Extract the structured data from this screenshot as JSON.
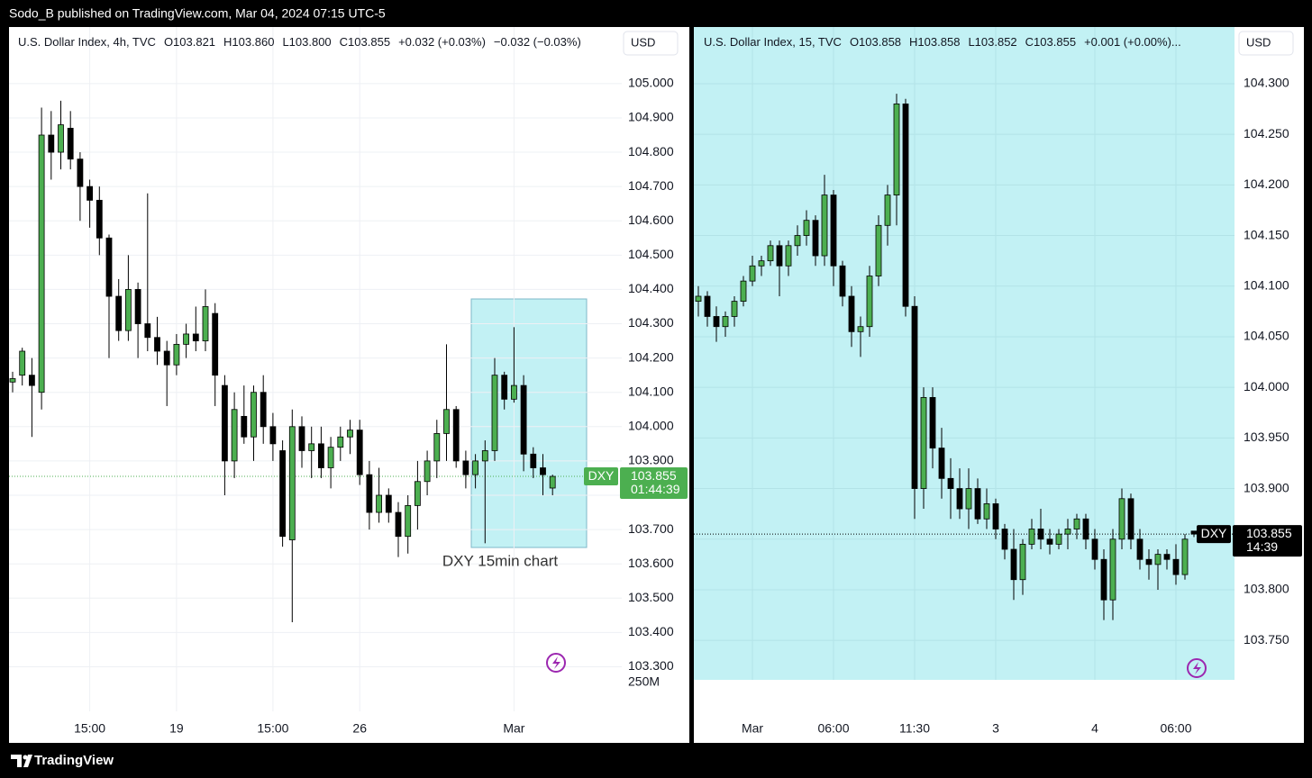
{
  "header": {
    "publish_line": "Sodo_B published on TradingView.com, Mar 04, 2024 07:15 UTC-5"
  },
  "footer": {
    "brand": "TradingView"
  },
  "chart_data": [
    {
      "type": "candlestick",
      "title": "U.S. Dollar Index, 4h, TVC",
      "legend": [
        "O103.821",
        "H103.860",
        "L103.800",
        "C103.855",
        "+0.032 (+0.03%)",
        "−0.032 (−0.03%)"
      ],
      "currency": "USD",
      "symbol": "DXY",
      "countdown": "01:44:39",
      "volume_label": "250M",
      "annotation": "DXY 15min chart",
      "last_price": 103.855,
      "last_price_color": "#4caf50",
      "up_color": "#4caf50",
      "down_color": "#000000",
      "background": "#ffffff",
      "grid": true,
      "ylim": [
        103.17,
        105.165
      ],
      "yticks": [
        {
          "value": 103.3,
          "label": "103.300"
        },
        {
          "value": 103.4,
          "label": "103.400"
        },
        {
          "value": 103.5,
          "label": "103.500"
        },
        {
          "value": 103.6,
          "label": "103.600"
        },
        {
          "value": 103.7,
          "label": "103.700"
        },
        {
          "value": 103.8,
          "label": "103.800"
        },
        {
          "value": 103.9,
          "label": "103.900"
        },
        {
          "value": 104.0,
          "label": "104.000"
        },
        {
          "value": 104.1,
          "label": "104.100"
        },
        {
          "value": 104.2,
          "label": "104.200"
        },
        {
          "value": 104.3,
          "label": "104.300"
        },
        {
          "value": 104.4,
          "label": "104.400"
        },
        {
          "value": 104.5,
          "label": "104.500"
        },
        {
          "value": 104.6,
          "label": "104.600"
        },
        {
          "value": 104.7,
          "label": "104.700"
        },
        {
          "value": 104.8,
          "label": "104.800"
        },
        {
          "value": 104.9,
          "label": "104.900"
        },
        {
          "value": 105.0,
          "label": "105.000"
        }
      ],
      "categories": [
        null,
        null,
        null,
        null,
        null,
        null,
        null,
        null,
        "15:00",
        null,
        null,
        null,
        null,
        null,
        null,
        null,
        null,
        "19",
        null,
        null,
        null,
        null,
        null,
        null,
        null,
        null,
        null,
        "15:00",
        null,
        null,
        null,
        null,
        null,
        null,
        null,
        null,
        "26",
        null,
        null,
        null,
        null,
        null,
        null,
        null,
        null,
        null,
        null,
        null,
        null,
        null,
        null,
        null,
        "Mar",
        null,
        null,
        null,
        null
      ],
      "ohlc": [
        [
          104.13,
          104.16,
          104.1,
          104.14
        ],
        [
          104.15,
          104.23,
          104.12,
          104.22
        ],
        [
          104.15,
          104.2,
          103.97,
          104.12
        ],
        [
          104.1,
          104.93,
          104.05,
          104.85
        ],
        [
          104.85,
          104.92,
          104.72,
          104.8
        ],
        [
          104.8,
          104.95,
          104.75,
          104.88
        ],
        [
          104.87,
          104.92,
          104.75,
          104.78
        ],
        [
          104.78,
          104.8,
          104.6,
          104.7
        ],
        [
          104.7,
          104.72,
          104.58,
          104.66
        ],
        [
          104.66,
          104.7,
          104.5,
          104.55
        ],
        [
          104.55,
          104.56,
          104.2,
          104.38
        ],
        [
          104.38,
          104.43,
          104.25,
          104.28
        ],
        [
          104.28,
          104.5,
          104.25,
          104.4
        ],
        [
          104.4,
          104.42,
          104.2,
          104.3
        ],
        [
          104.3,
          104.68,
          104.22,
          104.26
        ],
        [
          104.26,
          104.32,
          104.18,
          104.22
        ],
        [
          104.22,
          104.25,
          104.06,
          104.18
        ],
        [
          104.18,
          104.27,
          104.15,
          104.24
        ],
        [
          104.24,
          104.3,
          104.2,
          104.27
        ],
        [
          104.27,
          104.35,
          104.22,
          104.25
        ],
        [
          104.25,
          104.4,
          104.22,
          104.35
        ],
        [
          104.33,
          104.36,
          104.06,
          104.15
        ],
        [
          104.12,
          104.15,
          103.8,
          103.9
        ],
        [
          103.9,
          104.1,
          103.85,
          104.05
        ],
        [
          104.03,
          104.12,
          103.95,
          103.97
        ],
        [
          103.97,
          104.12,
          103.9,
          104.1
        ],
        [
          104.1,
          104.15,
          103.95,
          104.0
        ],
        [
          104.0,
          104.04,
          103.9,
          103.95
        ],
        [
          103.93,
          103.96,
          103.65,
          103.68
        ],
        [
          103.67,
          104.05,
          103.43,
          104.0
        ],
        [
          104.0,
          104.03,
          103.88,
          103.93
        ],
        [
          103.93,
          104.0,
          103.85,
          103.95
        ],
        [
          103.95,
          104.0,
          103.85,
          103.88
        ],
        [
          103.88,
          103.97,
          103.82,
          103.94
        ],
        [
          103.94,
          104.0,
          103.9,
          103.97
        ],
        [
          103.97,
          104.02,
          103.92,
          103.99
        ],
        [
          103.99,
          104.02,
          103.83,
          103.86
        ],
        [
          103.86,
          103.9,
          103.7,
          103.75
        ],
        [
          103.75,
          103.88,
          103.72,
          103.8
        ],
        [
          103.8,
          103.82,
          103.72,
          103.75
        ],
        [
          103.75,
          103.78,
          103.62,
          103.68
        ],
        [
          103.68,
          103.8,
          103.63,
          103.77
        ],
        [
          103.77,
          103.9,
          103.7,
          103.84
        ],
        [
          103.84,
          103.93,
          103.8,
          103.9
        ],
        [
          103.9,
          104.02,
          103.85,
          103.98
        ],
        [
          103.98,
          104.24,
          103.9,
          104.05
        ],
        [
          104.05,
          104.06,
          103.88,
          103.9
        ],
        [
          103.9,
          103.93,
          103.82,
          103.86
        ],
        [
          103.86,
          103.92,
          103.82,
          103.9
        ],
        [
          103.9,
          103.96,
          103.66,
          103.93
        ],
        [
          103.93,
          104.2,
          103.9,
          104.15
        ],
        [
          104.15,
          104.16,
          104.05,
          104.08
        ],
        [
          104.08,
          104.29,
          104.07,
          104.12
        ],
        [
          104.12,
          104.15,
          103.87,
          103.92
        ],
        [
          103.92,
          103.94,
          103.85,
          103.88
        ],
        [
          103.88,
          103.92,
          103.8,
          103.86
        ],
        [
          103.821,
          103.86,
          103.8,
          103.855
        ]
      ]
    },
    {
      "type": "candlestick",
      "title": "U.S. Dollar Index, 15, TVC",
      "legend": [
        "O103.858",
        "H103.858",
        "L103.852",
        "C103.855",
        "+0.001 (+0.00%)..."
      ],
      "currency": "USD",
      "symbol": "DXY",
      "countdown": "14:39",
      "last_price": 103.855,
      "last_price_color": "#000000",
      "up_color": "#4caf50",
      "down_color": "#000000",
      "background": "#c2f1f4",
      "grid": true,
      "ylim": [
        103.711,
        104.356
      ],
      "yticks": [
        {
          "value": 103.75,
          "label": "103.750"
        },
        {
          "value": 103.8,
          "label": "103.800"
        },
        {
          "value": 103.85,
          "label": "103.850"
        },
        {
          "value": 103.9,
          "label": "103.900"
        },
        {
          "value": 103.95,
          "label": "103.950"
        },
        {
          "value": 104.0,
          "label": "104.000"
        },
        {
          "value": 104.05,
          "label": "104.050"
        },
        {
          "value": 104.1,
          "label": "104.100"
        },
        {
          "value": 104.15,
          "label": "104.150"
        },
        {
          "value": 104.2,
          "label": "104.200"
        },
        {
          "value": 104.25,
          "label": "104.250"
        },
        {
          "value": 104.3,
          "label": "104.300"
        }
      ],
      "categories": [
        null,
        null,
        null,
        null,
        null,
        null,
        "Mar",
        null,
        null,
        null,
        null,
        null,
        null,
        null,
        null,
        "06:00",
        null,
        null,
        null,
        null,
        null,
        null,
        null,
        null,
        "11:30",
        null,
        null,
        null,
        null,
        null,
        null,
        null,
        null,
        "3",
        null,
        null,
        null,
        null,
        null,
        null,
        null,
        null,
        null,
        null,
        "4",
        null,
        null,
        null,
        null,
        null,
        null,
        null,
        null,
        "06:00",
        null,
        null
      ],
      "ohlc": [
        [
          104.085,
          104.1,
          104.07,
          104.09
        ],
        [
          104.09,
          104.095,
          104.06,
          104.07
        ],
        [
          104.07,
          104.08,
          104.045,
          104.06
        ],
        [
          104.06,
          104.075,
          104.05,
          104.07
        ],
        [
          104.07,
          104.09,
          104.06,
          104.085
        ],
        [
          104.085,
          104.11,
          104.08,
          104.105
        ],
        [
          104.105,
          104.13,
          104.1,
          104.12
        ],
        [
          104.12,
          104.13,
          104.11,
          104.125
        ],
        [
          104.125,
          104.145,
          104.12,
          104.14
        ],
        [
          104.14,
          104.145,
          104.09,
          104.12
        ],
        [
          104.12,
          104.145,
          104.11,
          104.14
        ],
        [
          104.14,
          104.16,
          104.13,
          104.15
        ],
        [
          104.15,
          104.175,
          104.14,
          104.165
        ],
        [
          104.165,
          104.17,
          104.12,
          104.13
        ],
        [
          104.13,
          104.21,
          104.12,
          104.19
        ],
        [
          104.19,
          104.195,
          104.1,
          104.12
        ],
        [
          104.12,
          104.125,
          104.08,
          104.09
        ],
        [
          104.09,
          104.1,
          104.04,
          104.055
        ],
        [
          104.055,
          104.07,
          104.03,
          104.06
        ],
        [
          104.06,
          104.12,
          104.05,
          104.11
        ],
        [
          104.11,
          104.17,
          104.1,
          104.16
        ],
        [
          104.16,
          104.2,
          104.14,
          104.19
        ],
        [
          104.19,
          104.29,
          104.16,
          104.28
        ],
        [
          104.28,
          104.285,
          104.07,
          104.08
        ],
        [
          104.08,
          104.09,
          103.87,
          103.9
        ],
        [
          103.9,
          104.0,
          103.88,
          103.99
        ],
        [
          103.99,
          104.0,
          103.92,
          103.94
        ],
        [
          103.94,
          103.96,
          103.89,
          103.91
        ],
        [
          103.91,
          103.93,
          103.87,
          103.9
        ],
        [
          103.9,
          103.92,
          103.87,
          103.88
        ],
        [
          103.88,
          103.92,
          103.86,
          103.9
        ],
        [
          103.9,
          103.91,
          103.865,
          103.87
        ],
        [
          103.87,
          103.9,
          103.86,
          103.885
        ],
        [
          103.885,
          103.89,
          103.85,
          103.86
        ],
        [
          103.86,
          103.865,
          103.83,
          103.84
        ],
        [
          103.84,
          103.86,
          103.79,
          103.81
        ],
        [
          103.81,
          103.85,
          103.795,
          103.845
        ],
        [
          103.845,
          103.87,
          103.84,
          103.86
        ],
        [
          103.86,
          103.88,
          103.84,
          103.85
        ],
        [
          103.85,
          103.86,
          103.835,
          103.845
        ],
        [
          103.845,
          103.86,
          103.84,
          103.855
        ],
        [
          103.855,
          103.87,
          103.84,
          103.86
        ],
        [
          103.86,
          103.875,
          103.85,
          103.87
        ],
        [
          103.87,
          103.875,
          103.84,
          103.85
        ],
        [
          103.85,
          103.86,
          103.82,
          103.83
        ],
        [
          103.83,
          103.84,
          103.77,
          103.79
        ],
        [
          103.79,
          103.86,
          103.77,
          103.85
        ],
        [
          103.85,
          103.9,
          103.84,
          103.89
        ],
        [
          103.89,
          103.895,
          103.84,
          103.85
        ],
        [
          103.85,
          103.86,
          103.82,
          103.83
        ],
        [
          103.83,
          103.84,
          103.81,
          103.825
        ],
        [
          103.825,
          103.84,
          103.8,
          103.835
        ],
        [
          103.835,
          103.84,
          103.82,
          103.83
        ],
        [
          103.83,
          103.845,
          103.805,
          103.815
        ],
        [
          103.815,
          103.855,
          103.81,
          103.85
        ],
        [
          103.858,
          103.858,
          103.852,
          103.855
        ]
      ]
    }
  ]
}
